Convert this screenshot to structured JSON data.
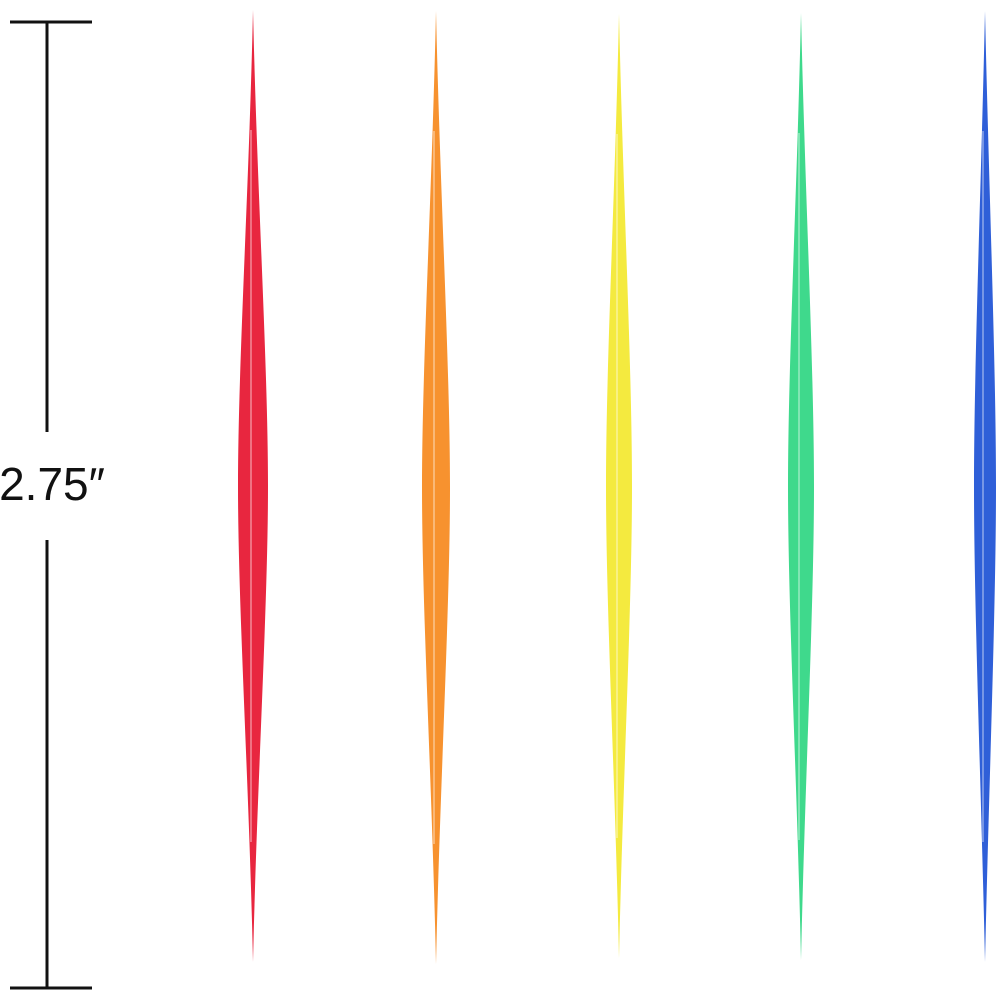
{
  "dimension": {
    "label": "2.75″"
  }
}
